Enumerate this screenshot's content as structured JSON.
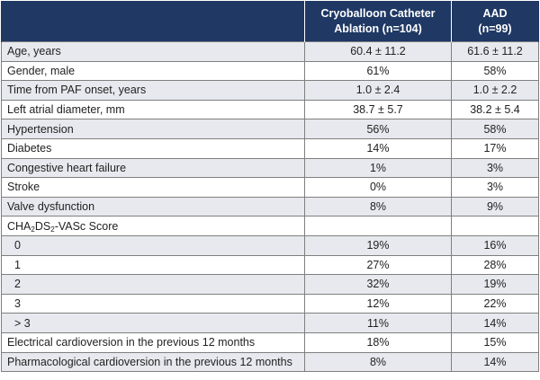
{
  "header": {
    "col1": "",
    "col2_line1": "Cryoballoon Catheter",
    "col2_line2": "Ablation (n=104)",
    "col3_line1": "AAD",
    "col3_line2": "(n=99)"
  },
  "score_label": {
    "pre": "CHA",
    "sub1": "2",
    "mid": "DS",
    "sub2": "2",
    "post": "-VASc Score"
  },
  "rows": [
    {
      "label": "Age, years",
      "a": "60.4 ± 11.2",
      "b": "61.6 ± 11.2"
    },
    {
      "label": "Gender, male",
      "a": "61%",
      "b": "58%"
    },
    {
      "label": "Time from PAF onset, years",
      "a": "1.0 ± 2.4",
      "b": "1.0 ± 2.2"
    },
    {
      "label": "Left atrial diameter, mm",
      "a": "38.7 ± 5.7",
      "b": "38.2 ± 5.4"
    },
    {
      "label": "Hypertension",
      "a": "56%",
      "b": "58%"
    },
    {
      "label": "Diabetes",
      "a": "14%",
      "b": "17%"
    },
    {
      "label": "Congestive heart failure",
      "a": "1%",
      "b": "3%"
    },
    {
      "label": "Stroke",
      "a": "0%",
      "b": "3%"
    },
    {
      "label": "Valve dysfunction",
      "a": "8%",
      "b": "9%"
    },
    {
      "label": "",
      "a": "",
      "b": ""
    },
    {
      "label": "0",
      "a": "19%",
      "b": "16%"
    },
    {
      "label": "1",
      "a": "27%",
      "b": "28%"
    },
    {
      "label": "2",
      "a": "32%",
      "b": "19%"
    },
    {
      "label": "3",
      "a": "12%",
      "b": "22%"
    },
    {
      "label": "> 3",
      "a": "11%",
      "b": "14%"
    },
    {
      "label": "Electrical cardioversion in the previous 12 months",
      "a": "18%",
      "b": "15%"
    },
    {
      "label": "Pharmacological cardioversion in the previous 12 months",
      "a": "8%",
      "b": "14%"
    }
  ]
}
